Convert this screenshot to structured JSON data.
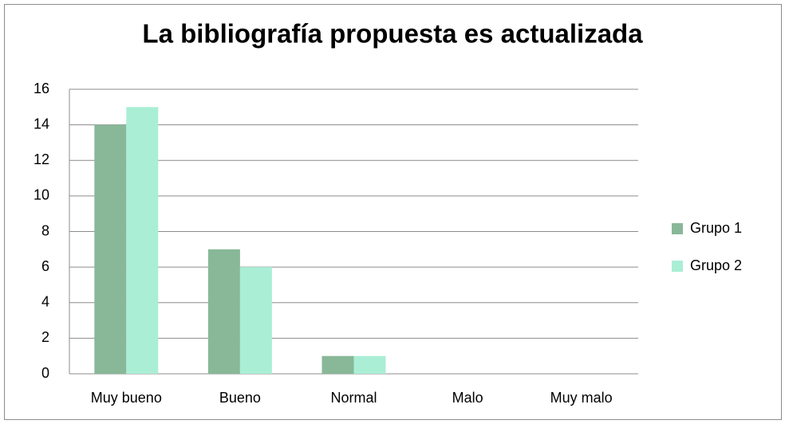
{
  "chart_data": {
    "type": "bar",
    "title": "La bibliografía propuesta es actualizada",
    "categories": [
      "Muy bueno",
      "Bueno",
      "Normal",
      "Malo",
      "Muy malo"
    ],
    "series": [
      {
        "name": "Grupo 1",
        "color": "#88b898",
        "values": [
          14,
          7,
          1,
          0,
          0
        ]
      },
      {
        "name": "Grupo 2",
        "color": "#aaeed6",
        "values": [
          15,
          6,
          1,
          0,
          0
        ]
      }
    ],
    "ylim": [
      0,
      16
    ],
    "yticks": [
      0,
      2,
      4,
      6,
      8,
      10,
      12,
      14,
      16
    ],
    "grid": true,
    "legend": "right"
  }
}
